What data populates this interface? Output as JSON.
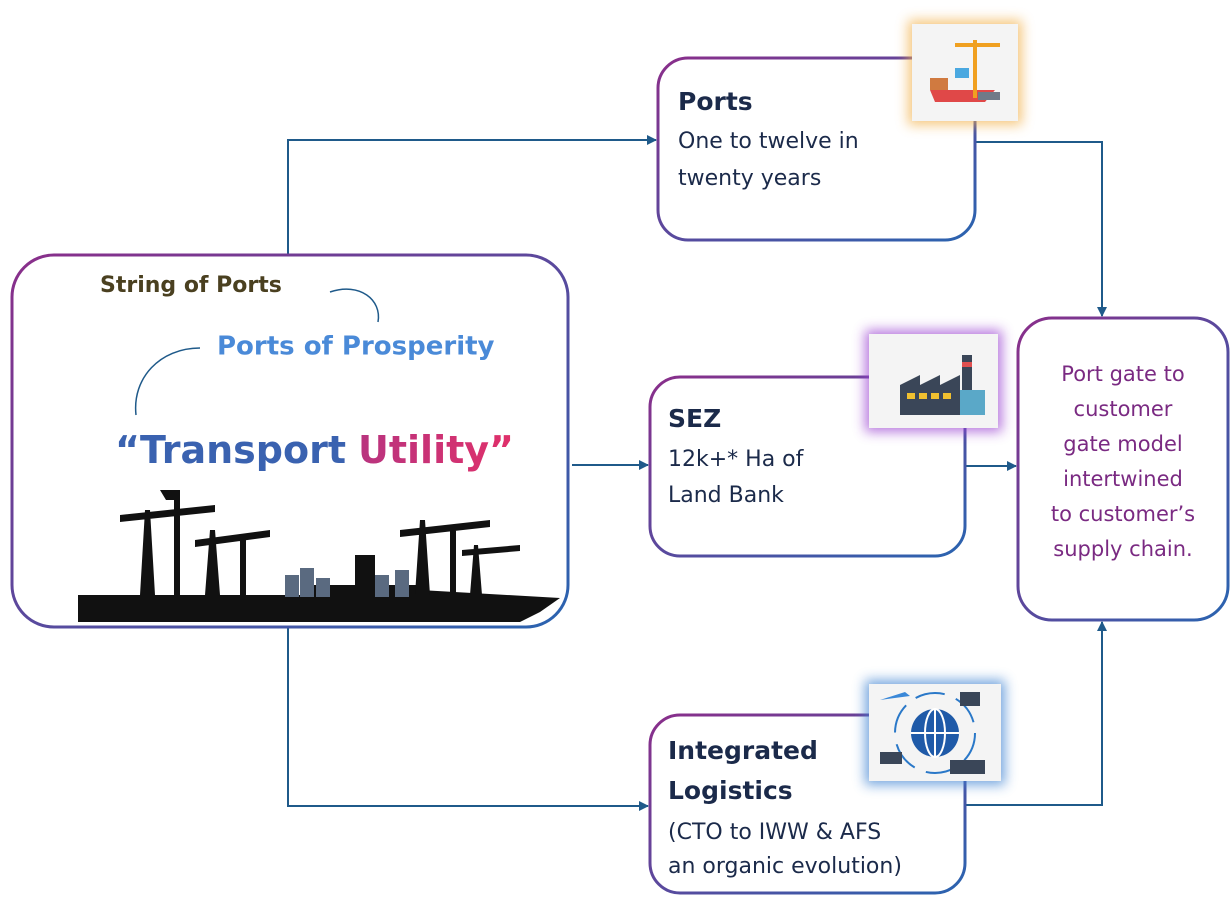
{
  "left_box": {
    "tagline_1": "String of Ports",
    "tagline_2": "Ports of Prosperity",
    "slogan_1": "“Transport",
    "slogan_2": "Utility”"
  },
  "ports": {
    "title": "Ports",
    "lines": [
      "One to twelve in",
      "twenty years"
    ]
  },
  "sez": {
    "title": "SEZ",
    "lines": [
      "12k+* Ha of",
      "Land Bank"
    ]
  },
  "logistics": {
    "title_lines": [
      "Integrated",
      "Logistics"
    ],
    "lines": [
      "(CTO to IWW & AFS",
      "an organic evolution)"
    ]
  },
  "outcome": {
    "lines": [
      "Port gate to",
      "customer",
      "gate model",
      "intertwined",
      "to customer’s",
      "supply chain."
    ]
  }
}
